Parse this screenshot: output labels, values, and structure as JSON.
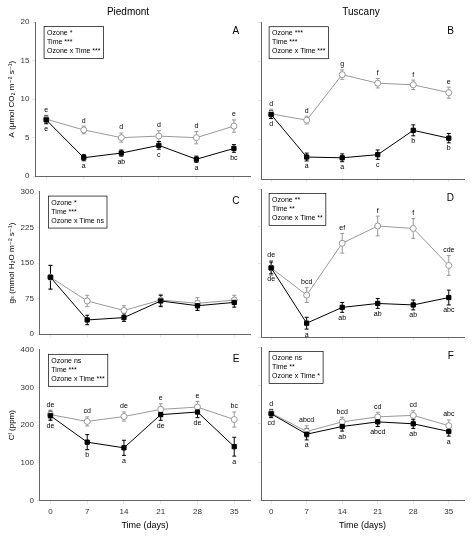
{
  "chart_data": [
    {
      "type": "line",
      "title": "Piedmont",
      "panel_label": "A",
      "annotations": [
        "Ozone *",
        "Time ***",
        "Ozone x Time ***"
      ],
      "ylabel": "A (μmol CO₂ m⁻² s⁻¹)",
      "x": [
        0,
        7,
        14,
        21,
        28,
        35
      ],
      "xlim": [
        -2,
        38
      ],
      "xticks": [
        0,
        7,
        14,
        21,
        28,
        35
      ],
      "ylim": [
        0,
        20
      ],
      "yticks": [
        0,
        5,
        10,
        15,
        20
      ],
      "grid": false,
      "tick_labels": "y",
      "series": [
        {
          "color": "#999999",
          "marker": "open_circle",
          "line_style": "solid",
          "values": [
            7.4,
            6.0,
            5.0,
            5.2,
            5.0,
            6.5
          ],
          "errors": [
            0.5,
            0.5,
            0.6,
            0.7,
            0.8,
            0.8
          ],
          "annotations_above": [
            "e",
            "d",
            "d",
            "d",
            "d",
            "e"
          ]
        },
        {
          "color": "#000000",
          "marker": "square",
          "line_style": "solid",
          "values": [
            7.3,
            2.4,
            3.0,
            4.0,
            2.2,
            3.6
          ],
          "errors": [
            0.5,
            0.4,
            0.4,
            0.5,
            0.4,
            0.5
          ],
          "annotations_below": [
            "e",
            "a",
            "ab",
            "c",
            "a",
            "bc"
          ]
        }
      ]
    },
    {
      "type": "line",
      "title": "Tuscany",
      "panel_label": "B",
      "annotations": [
        "Ozone ***",
        "Time ***",
        "Ozone x Time ***"
      ],
      "x": [
        0,
        7,
        14,
        21,
        28,
        35
      ],
      "xlim": [
        -2,
        38
      ],
      "xticks": [
        0,
        7,
        14,
        21,
        28,
        35
      ],
      "ylim": [
        0,
        20
      ],
      "yticks": [
        0,
        5,
        10,
        15,
        20
      ],
      "grid": false,
      "tick_labels": false,
      "series": [
        {
          "color": "#999999",
          "marker": "open_circle",
          "line_style": "solid",
          "values": [
            8.3,
            7.5,
            13.3,
            12.2,
            12.0,
            11.0
          ],
          "errors": [
            0.6,
            0.5,
            0.6,
            0.6,
            0.6,
            0.7
          ],
          "annotations_above": [
            "d",
            "d",
            "g",
            "f",
            "f",
            "e"
          ]
        },
        {
          "color": "#000000",
          "marker": "square",
          "line_style": "solid",
          "values": [
            8.2,
            2.8,
            2.7,
            3.1,
            6.2,
            5.2
          ],
          "errors": [
            0.5,
            0.5,
            0.5,
            0.6,
            0.7,
            0.6
          ],
          "annotations_below": [
            "d",
            "a",
            "a",
            "c",
            "b",
            "b"
          ]
        }
      ]
    },
    {
      "type": "line",
      "panel_label": "C",
      "annotations": [
        "Ozone *",
        "Time ***",
        "Ozone x Time ns"
      ],
      "ylabel": "gₛ (mmol H₂O m⁻² s⁻¹)",
      "x": [
        0,
        7,
        14,
        21,
        28,
        35
      ],
      "xlim": [
        -2,
        38
      ],
      "xticks": [
        0,
        7,
        14,
        21,
        28,
        35
      ],
      "ylim": [
        0,
        300
      ],
      "yticks": [
        0,
        75,
        150,
        225,
        300
      ],
      "grid": false,
      "tick_labels": "y",
      "series": [
        {
          "color": "#999999",
          "marker": "open_circle",
          "line_style": "solid",
          "values": [
            120,
            70,
            50,
            72,
            65,
            72
          ],
          "errors": [
            25,
            12,
            10,
            12,
            12,
            10
          ]
        },
        {
          "color": "#000000",
          "marker": "square",
          "line_style": "solid",
          "values": [
            120,
            30,
            35,
            70,
            60,
            67
          ],
          "errors": [
            25,
            10,
            8,
            12,
            10,
            10
          ]
        }
      ]
    },
    {
      "type": "line",
      "panel_label": "D",
      "annotations": [
        "Ozone **",
        "Time **",
        "Ozone x Time **"
      ],
      "x": [
        0,
        7,
        14,
        21,
        28,
        35
      ],
      "xlim": [
        -2,
        38
      ],
      "xticks": [
        0,
        7,
        14,
        21,
        28,
        35
      ],
      "ylim": [
        0,
        300
      ],
      "yticks": [
        0,
        75,
        150,
        225,
        300
      ],
      "grid": false,
      "tick_labels": false,
      "series": [
        {
          "color": "#999999",
          "marker": "open_circle",
          "line_style": "solid",
          "values": [
            140,
            85,
            190,
            225,
            220,
            145
          ],
          "errors": [
            15,
            15,
            20,
            20,
            20,
            20
          ],
          "annotations_above": [
            "de",
            "bcd",
            "ef",
            "f",
            "f",
            "cde"
          ]
        },
        {
          "color": "#000000",
          "marker": "square",
          "line_style": "solid",
          "values": [
            140,
            28,
            60,
            68,
            65,
            80
          ],
          "errors": [
            12,
            12,
            10,
            10,
            10,
            15
          ],
          "annotations_below": [
            "de",
            "a",
            "ab",
            "ab",
            "ab",
            "abc"
          ]
        }
      ]
    },
    {
      "type": "line",
      "panel_label": "E",
      "annotations": [
        "Ozone ns",
        "Time ***",
        "Ozone x Time ***"
      ],
      "ylabel": "Cᴵ (ppm)",
      "xlabel": "Time (days)",
      "x": [
        0,
        7,
        14,
        21,
        28,
        35
      ],
      "xlim": [
        -2,
        38
      ],
      "xticks": [
        0,
        7,
        14,
        21,
        28,
        35
      ],
      "ylim": [
        0,
        400
      ],
      "yticks": [
        0,
        100,
        200,
        300,
        400
      ],
      "grid": false,
      "series": [
        {
          "color": "#999999",
          "marker": "open_circle",
          "line_style": "solid",
          "values": [
            228,
            210,
            223,
            242,
            248,
            215
          ],
          "errors": [
            12,
            12,
            12,
            15,
            15,
            20
          ],
          "annotations_above": [
            "de",
            "cd",
            "de",
            "e",
            "e",
            "bc"
          ]
        },
        {
          "color": "#000000",
          "marker": "square",
          "line_style": "solid",
          "values": [
            225,
            155,
            140,
            228,
            235,
            143
          ],
          "errors": [
            12,
            20,
            20,
            15,
            15,
            25
          ],
          "annotations_below": [
            "de",
            "b",
            "a",
            "de",
            "de",
            "a"
          ]
        }
      ]
    },
    {
      "type": "line",
      "panel_label": "F",
      "annotations": [
        "Ozone ns",
        "Time **",
        "Ozone x Time *"
      ],
      "xlabel": "Time (days)",
      "x": [
        0,
        7,
        14,
        21,
        28,
        35
      ],
      "xlim": [
        -2,
        38
      ],
      "xticks": [
        0,
        7,
        14,
        21,
        28,
        35
      ],
      "ylim": [
        0,
        400
      ],
      "yticks": [
        0,
        100,
        200,
        300,
        400
      ],
      "grid": false,
      "tick_labels": "x",
      "series": [
        {
          "color": "#999999",
          "marker": "open_circle",
          "line_style": "solid",
          "values": [
            228,
            180,
            205,
            218,
            222,
            195
          ],
          "errors": [
            10,
            15,
            12,
            12,
            12,
            15
          ],
          "annotations_above": [
            "d",
            "abcd",
            "bcd",
            "cd",
            "cd",
            "abc"
          ]
        },
        {
          "color": "#000000",
          "marker": "square",
          "line_style": "solid",
          "values": [
            226,
            173,
            193,
            205,
            200,
            180
          ],
          "errors": [
            10,
            15,
            12,
            12,
            12,
            12
          ],
          "annotations_below": [
            "cd",
            "a",
            "ab",
            "abcd",
            "ab",
            "a"
          ]
        }
      ]
    }
  ]
}
